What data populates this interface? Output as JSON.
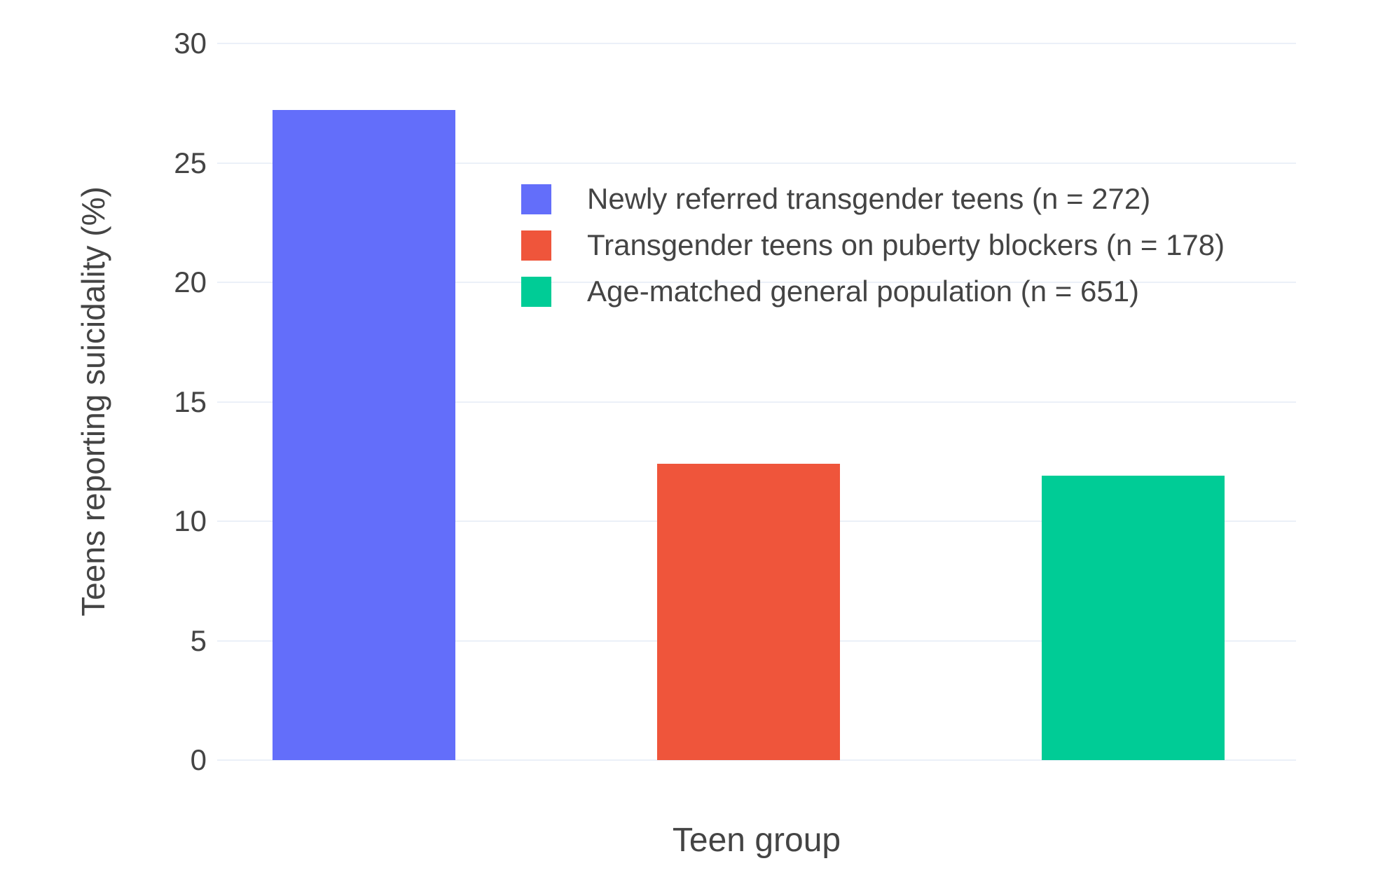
{
  "chart_data": {
    "type": "bar",
    "title": "",
    "xlabel": "Teen group",
    "ylabel": "Teens reporting suicidality (%)",
    "ylim": [
      0,
      30
    ],
    "yticks": [
      0,
      5,
      10,
      15,
      20,
      25,
      30
    ],
    "grid": true,
    "legend_position": "inside-upper-middle",
    "categories": [
      "Newly referred transgender teens (n = 272)",
      "Transgender teens on puberty blockers (n = 178)",
      "Age-matched general population (n = 651)"
    ],
    "series": [
      {
        "name": "Newly referred transgender teens (n = 272)",
        "value": 27.2,
        "color": "#636EFA"
      },
      {
        "name": "Transgender teens on puberty blockers (n = 178)",
        "value": 12.4,
        "color": "#EF553B"
      },
      {
        "name": "Age-matched general population (n = 651)",
        "value": 11.9,
        "color": "#00CC96"
      }
    ]
  },
  "colors": {
    "background": "#FFFFFF",
    "grid": "#EBF0F8",
    "text": "#444444"
  }
}
